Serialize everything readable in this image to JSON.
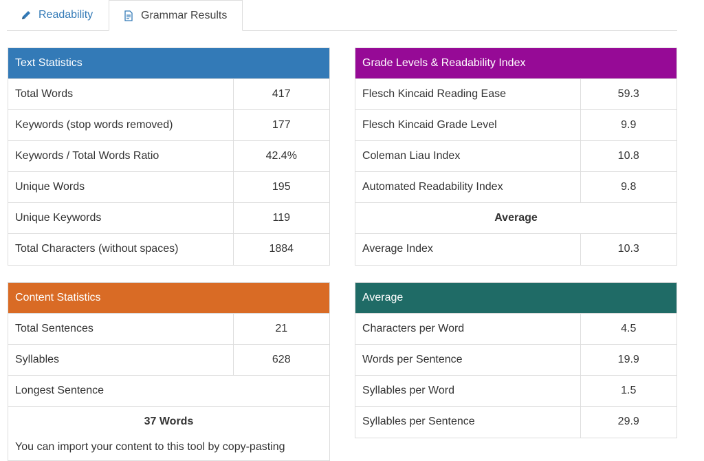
{
  "tabs": [
    {
      "label": "Readability",
      "icon": "pencil-icon"
    },
    {
      "label": "Grammar Results",
      "icon": "document-icon"
    }
  ],
  "text_statistics": {
    "title": "Text Statistics",
    "color": "#337ab7",
    "rows": [
      {
        "label": "Total Words",
        "value": "417"
      },
      {
        "label": "Keywords (stop words removed)",
        "value": "177"
      },
      {
        "label": "Keywords / Total Words Ratio",
        "value": "42.4%"
      },
      {
        "label": "Unique Words",
        "value": "195"
      },
      {
        "label": "Unique Keywords",
        "value": "119"
      },
      {
        "label": "Total Characters (without spaces)",
        "value": "1884"
      }
    ]
  },
  "grade_levels": {
    "title": "Grade Levels & Readability Index",
    "color": "#960a96",
    "rows": [
      {
        "label": "Flesch Kincaid Reading Ease",
        "value": "59.3"
      },
      {
        "label": "Flesch Kincaid Grade Level",
        "value": "9.9"
      },
      {
        "label": "Coleman Liau Index",
        "value": "10.8"
      },
      {
        "label": "Automated Readability Index",
        "value": "9.8"
      }
    ],
    "average_heading": "Average",
    "average_row": {
      "label": "Average Index",
      "value": "10.3"
    }
  },
  "content_statistics": {
    "title": "Content Statistics",
    "color": "#d96b25",
    "rows": [
      {
        "label": "Total Sentences",
        "value": "21"
      },
      {
        "label": "Syllables",
        "value": "628"
      }
    ],
    "longest_label": "Longest Sentence",
    "longest_value": "37 Words",
    "note": "You can import your content to this tool by copy-pasting"
  },
  "average": {
    "title": "Average",
    "color": "#1f6b66",
    "rows": [
      {
        "label": "Characters per Word",
        "value": "4.5"
      },
      {
        "label": "Words per Sentence",
        "value": "19.9"
      },
      {
        "label": "Syllables per Word",
        "value": "1.5"
      },
      {
        "label": "Syllables per Sentence",
        "value": "29.9"
      }
    ]
  }
}
